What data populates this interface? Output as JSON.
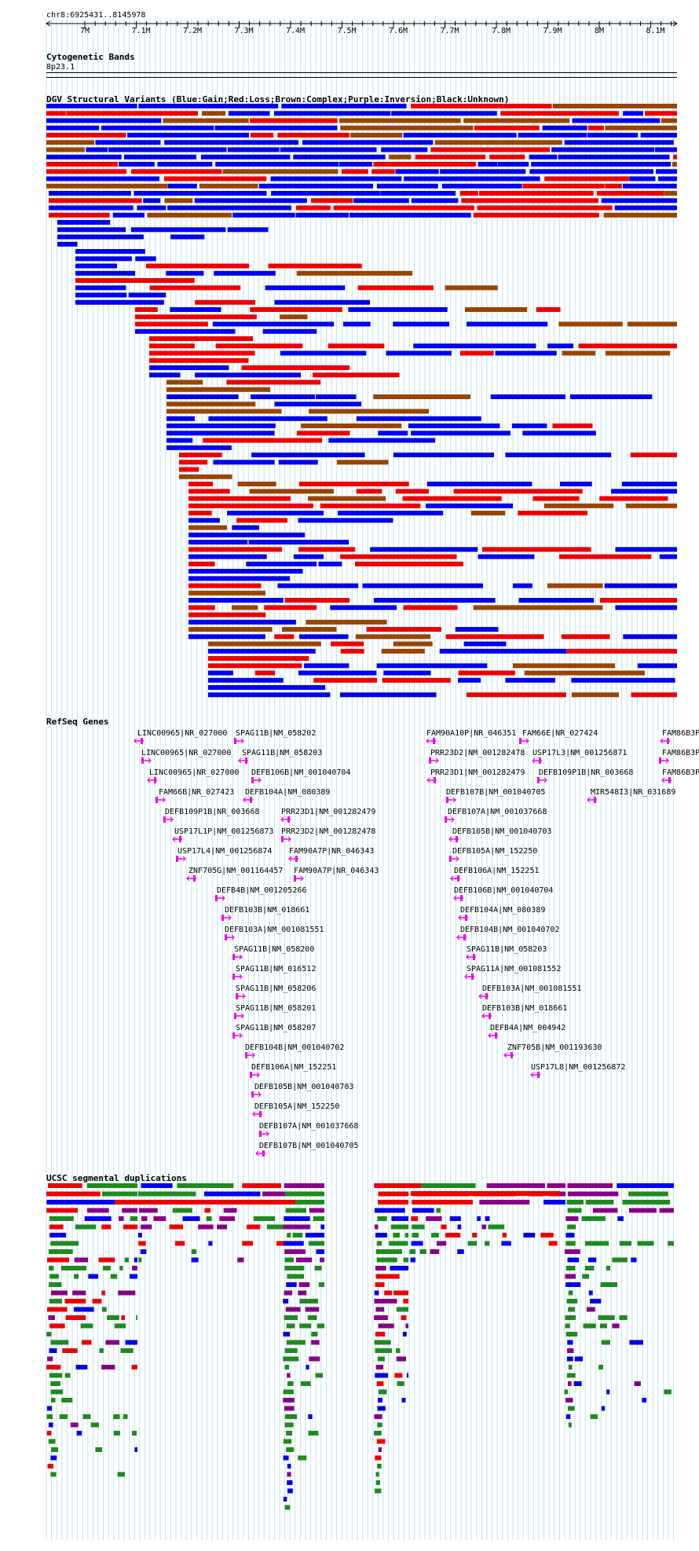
{
  "position_label": "chr8:6925431..8145978",
  "ruler": {
    "ticks": [
      "7M",
      "7.1M",
      "7.2M",
      "7.3M",
      "7.4M",
      "7.5M",
      "7.6M",
      "7.7M",
      "7.8M",
      "7.9M",
      "8M",
      "8.1M"
    ]
  },
  "tracks": {
    "cytoband": {
      "title": "Cytogenetic Bands",
      "band": "8p23.1"
    },
    "dgv": {
      "title": "DGV Structural Variants (Blue:Gain;Red:Loss;Brown:Complex;Purple:Inversion;Black:Unknown)",
      "colors": {
        "gain": "#0000ee",
        "loss": "#ee0000",
        "complex": "#994400",
        "inversion": "#880088",
        "unknown": "#000000"
      }
    },
    "refseq": {
      "title": "RefSeq Genes",
      "color": "#ee00ee",
      "genes": [
        "LINC00965|NR_027000",
        "SPAG11B|NM_058202",
        "FAM90A10P|NR_046351",
        "FAM66E|NR_027424",
        "FAM86B3P",
        "LINC00965|NR_027000",
        "SPAG11B|NM_058203",
        "PRR23D2|NM_001282478",
        "USP17L3|NM_001256871",
        "FAM86B3P",
        "LINC00965|NR_027000",
        "DEFB106B|NM_001040704",
        "PRR23D1|NM_001282479",
        "DEFB109P1B|NR_003668",
        "FAM86B3P",
        "FAM66B|NR_027423",
        "DEFB104A|NM_080389",
        "DEFB107B|NM_001040705",
        "MIR548I3|NR_031689",
        "DEFB109P1B|NR_003668",
        "PRR23D1|NM_001282479",
        "DEFB107A|NM_001037668",
        "USP17L1P|NM_001256873",
        "PRR23D2|NM_001282478",
        "DEFB105B|NM_001040703",
        "USP17L4|NM_001256874",
        "FAM90A7P|NR_046343",
        "DEFB105A|NM_152250",
        "ZNF705G|NM_001164457",
        "FAM90A7P|NR_046343",
        "DEFB106A|NM_152251",
        "DEFB4B|NM_001205266",
        "DEFB106B|NM_001040704",
        "DEFB103B|NM_018661",
        "DEFB104A|NM_080389",
        "DEFB103A|NM_001081551",
        "DEFB104B|NM_001040702",
        "SPAG11B|NM_058200",
        "SPAG11B|NM_058203",
        "SPAG11B|NM_016512",
        "SPAG11A|NM_001081552",
        "SPAG11B|NM_058206",
        "DEFB103A|NM_001081551",
        "SPAG11B|NM_058201",
        "DEFB103B|NM_018661",
        "SPAG11B|NM_058207",
        "DEFB4A|NM_004942",
        "DEFB104B|NM_001040702",
        "ZNF705B|NM_001193630",
        "DEFB106A|NM_152251",
        "USP17L8|NM_001256872",
        "DEFB105B|NM_001040703",
        "DEFB105A|NM_152250",
        "DEFB107A|NM_001037668",
        "DEFB107B|NM_001040705"
      ]
    },
    "segdups": {
      "title": "UCSC segmental duplications",
      "colors": {
        "green": "#1f8a1f",
        "blue": "#0000ee",
        "red": "#ee0000",
        "purple": "#880088"
      }
    }
  }
}
